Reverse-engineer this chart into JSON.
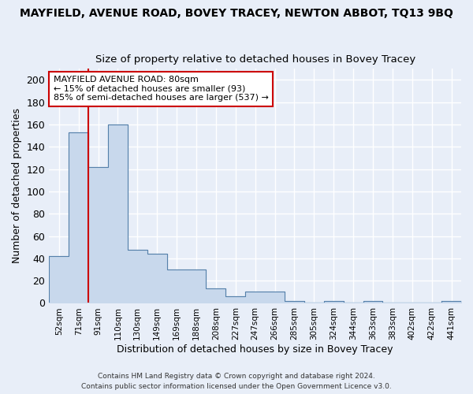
{
  "title": "MAYFIELD, AVENUE ROAD, BOVEY TRACEY, NEWTON ABBOT, TQ13 9BQ",
  "subtitle": "Size of property relative to detached houses in Bovey Tracey",
  "xlabel": "Distribution of detached houses by size in Bovey Tracey",
  "ylabel": "Number of detached properties",
  "categories": [
    "52sqm",
    "71sqm",
    "91sqm",
    "110sqm",
    "130sqm",
    "149sqm",
    "169sqm",
    "188sqm",
    "208sqm",
    "227sqm",
    "247sqm",
    "266sqm",
    "285sqm",
    "305sqm",
    "324sqm",
    "344sqm",
    "363sqm",
    "383sqm",
    "402sqm",
    "422sqm",
    "441sqm"
  ],
  "values": [
    42,
    153,
    122,
    160,
    48,
    44,
    30,
    30,
    13,
    6,
    10,
    10,
    2,
    0,
    2,
    0,
    2,
    0,
    0,
    0,
    2
  ],
  "bar_color": "#c8d8ec",
  "bar_edge_color": "#5580aa",
  "background_color": "#e8eef8",
  "fig_background_color": "#e8eef8",
  "grid_color": "#ffffff",
  "red_line_x": 1.5,
  "annotation_title": "MAYFIELD AVENUE ROAD: 80sqm",
  "annotation_line1": "← 15% of detached houses are smaller (93)",
  "annotation_line2": "85% of semi-detached houses are larger (537) →",
  "annotation_box_color": "#ffffff",
  "annotation_box_edge": "#cc0000",
  "footnote1": "Contains HM Land Registry data © Crown copyright and database right 2024.",
  "footnote2": "Contains public sector information licensed under the Open Government Licence v3.0.",
  "ylim": [
    0,
    210
  ],
  "yticks": [
    0,
    20,
    40,
    60,
    80,
    100,
    120,
    140,
    160,
    180,
    200
  ]
}
